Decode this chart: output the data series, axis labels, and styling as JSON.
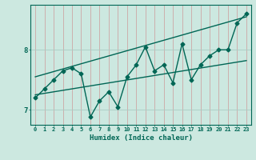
{
  "xlabel": "Humidex (Indice chaleur)",
  "x": [
    0,
    1,
    2,
    3,
    4,
    5,
    6,
    7,
    8,
    9,
    10,
    11,
    12,
    13,
    14,
    15,
    16,
    17,
    18,
    19,
    20,
    21,
    22,
    23
  ],
  "y": [
    7.2,
    7.35,
    7.5,
    7.65,
    7.7,
    7.6,
    6.88,
    7.15,
    7.3,
    7.05,
    7.55,
    7.75,
    8.05,
    7.65,
    7.75,
    7.45,
    8.1,
    7.5,
    7.75,
    7.9,
    8.0,
    8.0,
    8.45,
    8.6
  ],
  "trend1_start": 7.25,
  "trend1_end": 7.82,
  "trend2_start": 7.55,
  "trend2_end": 8.55,
  "bg_color": "#cce8e0",
  "line_color": "#006655",
  "grid_major_color": "#aaccc4",
  "grid_minor_color": "#cc9999",
  "ylim_min": 6.75,
  "ylim_max": 8.75,
  "xlim_min": -0.5,
  "xlim_max": 23.5,
  "yticks": [
    7,
    8
  ],
  "xticks": [
    0,
    1,
    2,
    3,
    4,
    5,
    6,
    7,
    8,
    9,
    10,
    11,
    12,
    13,
    14,
    15,
    16,
    17,
    18,
    19,
    20,
    21,
    22,
    23
  ]
}
